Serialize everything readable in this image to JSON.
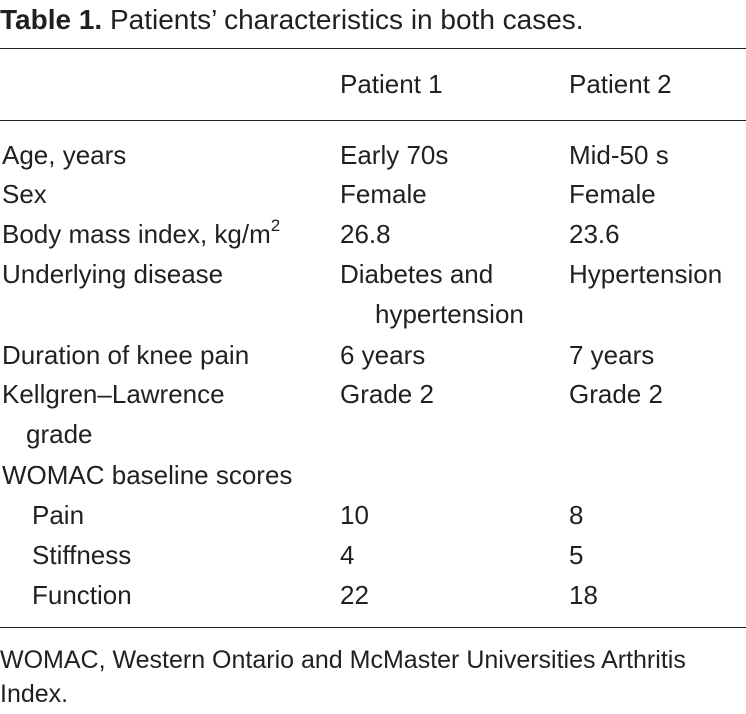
{
  "caption": {
    "label": "Table 1.",
    "text": "Patients’ characteristics in both cases."
  },
  "table": {
    "headers": [
      "",
      "Patient 1",
      "Patient 2"
    ],
    "rows": {
      "age": [
        "Age, years",
        "Early 70s",
        "Mid-50 s"
      ],
      "sex": [
        "Sex",
        "Female",
        "Female"
      ],
      "bmi": [
        "Body mass index, kg/m",
        "2",
        "26.8",
        "23.6"
      ],
      "disease": [
        "Underlying disease",
        "Diabetes and",
        "hypertension",
        "Hypertension"
      ],
      "duration": [
        "Duration of knee pain",
        "6 years",
        "7 years"
      ],
      "kl": [
        "Kellgren–Lawrence",
        "grade",
        "Grade 2",
        "Grade 2"
      ],
      "womac_header": "WOMAC baseline scores",
      "pain": [
        "Pain",
        "10",
        "8"
      ],
      "stiffness": [
        "Stiffness",
        "4",
        "5"
      ],
      "function": [
        "Function",
        "22",
        "18"
      ]
    }
  },
  "footnote": "WOMAC, Western Ontario and McMaster Universities Arthritis Index."
}
